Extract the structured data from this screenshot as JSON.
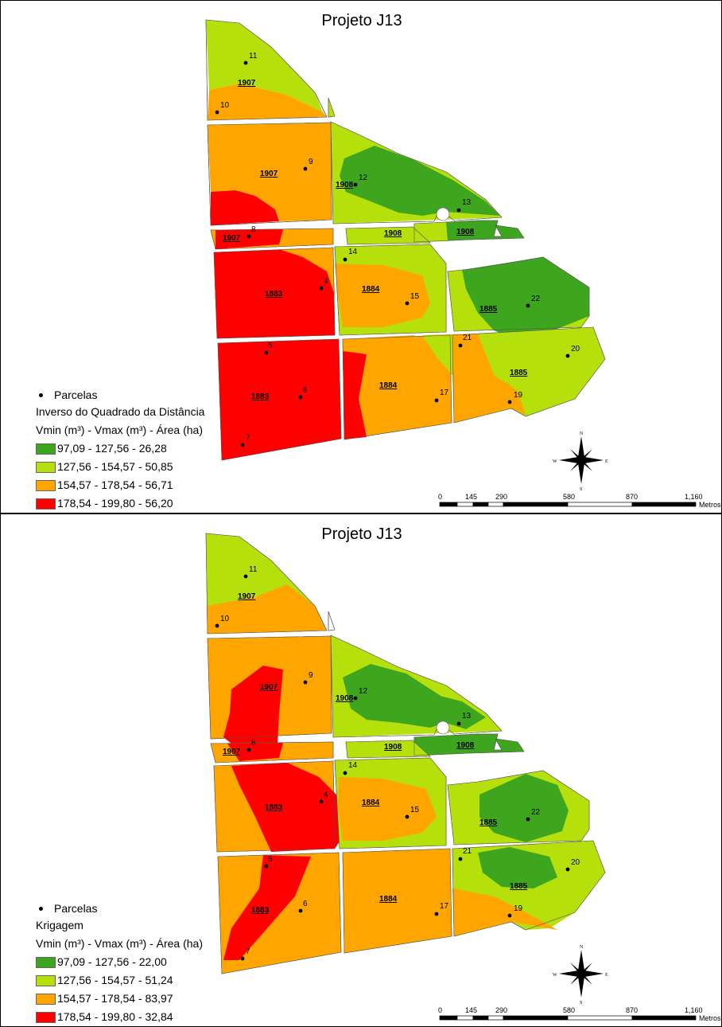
{
  "panels": [
    {
      "title": "Projeto J13",
      "legend": {
        "points_label": "Parcelas",
        "method": "Inverso do Quadrado da Distância",
        "header": "Vmin (m³) - Vmax (m³) - Área (ha)",
        "classes": [
          {
            "label": "97,09 - 127,56 - 26,28",
            "color": "#3ea51f"
          },
          {
            "label": "127,56 - 154,57 - 50,85",
            "color": "#b6e00c"
          },
          {
            "label": "154,57 - 178,54 - 56,71",
            "color": "#ffa500"
          },
          {
            "label": "178,54 - 199,80 - 56,20",
            "color": "#ff0000"
          }
        ]
      }
    },
    {
      "title": "Projeto J13",
      "legend": {
        "points_label": "Parcelas",
        "method": "Krigagem",
        "header": "Vmin (m³) - Vmax (m³) - Área (ha)",
        "classes": [
          {
            "label": "97,09 - 127,56 - 22,00",
            "color": "#3ea51f"
          },
          {
            "label": "127,56 - 154,57 - 51,24",
            "color": "#b6e00c"
          },
          {
            "label": "154,57 - 178,54 - 83,97",
            "color": "#ffa500"
          },
          {
            "label": "178,54 - 199,80 - 32,84",
            "color": "#ff0000"
          }
        ]
      }
    }
  ],
  "plots": [
    "11",
    "10",
    "9",
    "12",
    "13",
    "8",
    "14",
    "4",
    "15",
    "22",
    "5",
    "21",
    "20",
    "6",
    "17",
    "19",
    "7"
  ],
  "stands": [
    "1907",
    "1907",
    "1908",
    "1908",
    "1908",
    "1907",
    "1883",
    "1884",
    "1885",
    "1885",
    "1884",
    "1883"
  ],
  "scale_bar": {
    "ticks": [
      "0",
      "145",
      "290",
      "580",
      "870",
      "1,160"
    ],
    "unit": "Metros"
  },
  "compass": {
    "n": "N",
    "s": "S",
    "e": "E",
    "w": "W"
  }
}
